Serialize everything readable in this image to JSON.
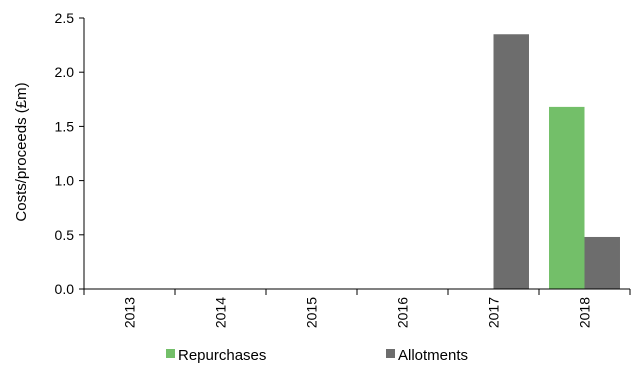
{
  "chart_data": {
    "type": "bar",
    "title": "",
    "xlabel": "",
    "ylabel": "Costs/proceeds (£m)",
    "categories": [
      "2013",
      "2014",
      "2015",
      "2016",
      "2017",
      "2018"
    ],
    "series": [
      {
        "name": "Repurchases",
        "color": "#73bf69",
        "values": [
          0,
          0,
          0,
          0,
          0,
          1.68
        ]
      },
      {
        "name": "Allotments",
        "color": "#6d6d6d",
        "values": [
          0,
          0,
          0,
          0,
          2.35,
          0.48
        ]
      }
    ],
    "ylim": [
      0,
      2.5
    ],
    "yticks": [
      "0.0",
      "0.5",
      "1.0",
      "1.5",
      "2.0",
      "2.5"
    ],
    "grid": false,
    "legend_position": "bottom"
  }
}
